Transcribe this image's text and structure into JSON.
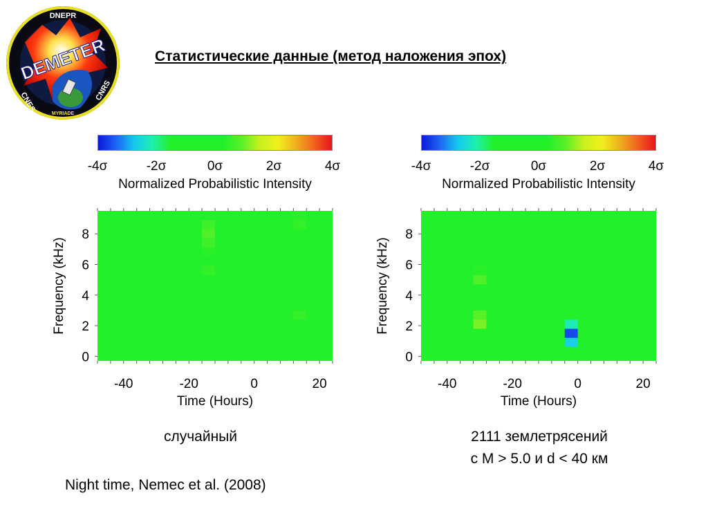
{
  "logo": {
    "top_text": "DNEPR",
    "brand": "DEMETER",
    "left_text": "CNES",
    "right_text": "CNRS",
    "bottom_text": "MYRIADE"
  },
  "title": "Статистические данные (метод наложения эпох)",
  "panels": [
    {
      "caption_lines": [
        "случайный"
      ],
      "colorbar": {
        "ticks": [
          "-4σ",
          "-2σ",
          "0σ",
          "2σ",
          "4σ"
        ],
        "label": "Normalized Probabilistic Intensity"
      }
    },
    {
      "caption_lines": [
        "2111 землетрясений",
        "с M > 5.0 и d < 40 км"
      ],
      "colorbar": {
        "ticks": [
          "-4σ",
          "-2σ",
          "0σ",
          "2σ",
          "4σ"
        ],
        "label": "Normalized Probabilistic Intensity"
      }
    }
  ],
  "footnote": "Night time, Nemec et al. (2008)",
  "colors": {
    "background_green": "#22f02a",
    "scale": [
      "#0a1ad8",
      "#1e64f4",
      "#16c8f0",
      "#1ef0b0",
      "#22f02a",
      "#22f02a",
      "#22f02a",
      "#22f02a",
      "#5af028",
      "#c8f01e",
      "#f0f01e",
      "#f0b01e",
      "#f0641e",
      "#e8141e"
    ]
  },
  "chart_data": [
    {
      "type": "heatmap",
      "xlabel": "Time (Hours)",
      "ylabel": "Frequency (kHz)",
      "xlim": [
        -48,
        24
      ],
      "ylim": [
        -0.3,
        9.5
      ],
      "x_ticks": [
        -40,
        -20,
        0,
        20
      ],
      "y_ticks": [
        0,
        2,
        4,
        6,
        8
      ],
      "colorbar_range_sigma": [
        -4,
        4
      ],
      "baseline_sigma": 0,
      "cells": [
        {
          "x0": -16,
          "x1": -12,
          "y0": 8.3,
          "y1": 8.9,
          "sigma": 0.6
        },
        {
          "x0": -16,
          "x1": -12,
          "y0": 7.7,
          "y1": 8.3,
          "sigma": 0.8
        },
        {
          "x0": -16,
          "x1": -12,
          "y0": 7.1,
          "y1": 7.7,
          "sigma": 0.6
        },
        {
          "x0": -16,
          "x1": -12,
          "y0": 6.5,
          "y1": 7.1,
          "sigma": 0.4
        },
        {
          "x0": -16,
          "x1": -12,
          "y0": 5.9,
          "y1": 6.5,
          "sigma": 0.3
        },
        {
          "x0": -16,
          "x1": -12,
          "y0": 5.3,
          "y1": 5.9,
          "sigma": 0.5
        },
        {
          "x0": -16,
          "x1": -12,
          "y0": 4.7,
          "y1": 5.3,
          "sigma": 0.3
        },
        {
          "x0": 12,
          "x1": 16,
          "y0": 8.9,
          "y1": 9.5,
          "sigma": 0.4
        },
        {
          "x0": 12,
          "x1": 16,
          "y0": 8.3,
          "y1": 8.9,
          "sigma": 0.5
        },
        {
          "x0": 12,
          "x1": 16,
          "y0": 2.4,
          "y1": 3.0,
          "sigma": 0.5
        }
      ]
    },
    {
      "type": "heatmap",
      "xlabel": "Time (Hours)",
      "ylabel": "Frequency (kHz)",
      "xlim": [
        -48,
        24
      ],
      "ylim": [
        -0.3,
        9.5
      ],
      "x_ticks": [
        -40,
        -20,
        0,
        20
      ],
      "y_ticks": [
        0,
        2,
        4,
        6,
        8
      ],
      "colorbar_range_sigma": [
        -4,
        4
      ],
      "baseline_sigma": 0,
      "cells": [
        {
          "x0": 0,
          "x1": 4,
          "y0": 7.7,
          "y1": 8.3,
          "sigma": 0.3
        },
        {
          "x0": 0,
          "x1": 4,
          "y0": 5.9,
          "y1": 6.5,
          "sigma": 0.3
        },
        {
          "x0": -32,
          "x1": -28,
          "y0": 5.3,
          "y1": 5.9,
          "sigma": 0.4
        },
        {
          "x0": -32,
          "x1": -28,
          "y0": 4.7,
          "y1": 5.3,
          "sigma": 0.8
        },
        {
          "x0": -32,
          "x1": -28,
          "y0": 2.4,
          "y1": 3.0,
          "sigma": 0.9
        },
        {
          "x0": -32,
          "x1": -28,
          "y0": 1.8,
          "y1": 2.4,
          "sigma": 1.1
        },
        {
          "x0": -4,
          "x1": 0,
          "y0": 2.4,
          "y1": 3.0,
          "sigma": -1.0
        },
        {
          "x0": -4,
          "x1": 0,
          "y0": 1.8,
          "y1": 2.4,
          "sigma": -2.2
        },
        {
          "x0": -4,
          "x1": 0,
          "y0": 1.2,
          "y1": 1.8,
          "sigma": -3.6
        },
        {
          "x0": -4,
          "x1": 0,
          "y0": 0.6,
          "y1": 1.2,
          "sigma": -2.6
        }
      ]
    }
  ]
}
